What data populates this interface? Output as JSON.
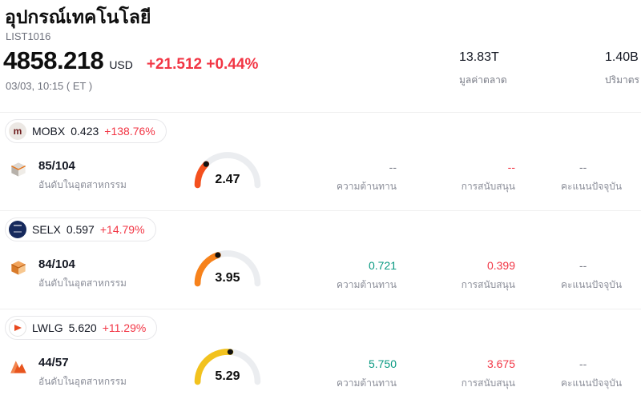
{
  "header": {
    "title": "อุปกรณ์เทคโนโลยี",
    "list_id": "LIST1016",
    "price": "4858.218",
    "currency": "USD",
    "change": "+21.512 +0.44%",
    "datetime": "03/03, 10:15  ( ET )",
    "market_cap": {
      "value": "13.83T",
      "label": "มูลค่าตลาด"
    },
    "volume": {
      "value": "1.40B",
      "label": "ปริมาตร"
    }
  },
  "colors": {
    "up_red": "#f23645",
    "green": "#089981",
    "muted": "#787b86"
  },
  "rows": [
    {
      "ticker": "MOBX",
      "price": "0.423",
      "change": "+138.76%",
      "avatar_text": "m",
      "rank": "85/104",
      "rank_label": "อันดับในอุตสาหกรรม",
      "gauge": {
        "value": "2.47",
        "color": "#f4501e"
      },
      "cells": {
        "resistance": {
          "value": "--",
          "label": "ความต้านทาน",
          "color": "#787b86"
        },
        "support": {
          "value": "--",
          "label": "การสนับสนุน",
          "color": "#f23645"
        },
        "current": {
          "value": "--",
          "label": "คะแนนปัจจุบัน",
          "color": "#787b86"
        }
      }
    },
    {
      "ticker": "SELX",
      "price": "0.597",
      "change": "+14.79%",
      "avatar_text": "",
      "rank": "84/104",
      "rank_label": "อันดับในอุตสาหกรรม",
      "gauge": {
        "value": "3.95",
        "color": "#f7821b"
      },
      "cells": {
        "resistance": {
          "value": "0.721",
          "label": "ความต้านทาน",
          "color": "#089981"
        },
        "support": {
          "value": "0.399",
          "label": "การสนับสนุน",
          "color": "#f23645"
        },
        "current": {
          "value": "--",
          "label": "คะแนนปัจจุบัน",
          "color": "#787b86"
        }
      }
    },
    {
      "ticker": "LWLG",
      "price": "5.620",
      "change": "+11.29%",
      "avatar_text": "",
      "rank": "44/57",
      "rank_label": "อันดับในอุตสาหกรรม",
      "gauge": {
        "value": "5.29",
        "color": "#f2c21e"
      },
      "cells": {
        "resistance": {
          "value": "5.750",
          "label": "ความต้านทาน",
          "color": "#089981"
        },
        "support": {
          "value": "3.675",
          "label": "การสนับสนุน",
          "color": "#f23645"
        },
        "current": {
          "value": "--",
          "label": "คะแนนปัจจุบัน",
          "color": "#787b86"
        }
      }
    }
  ]
}
